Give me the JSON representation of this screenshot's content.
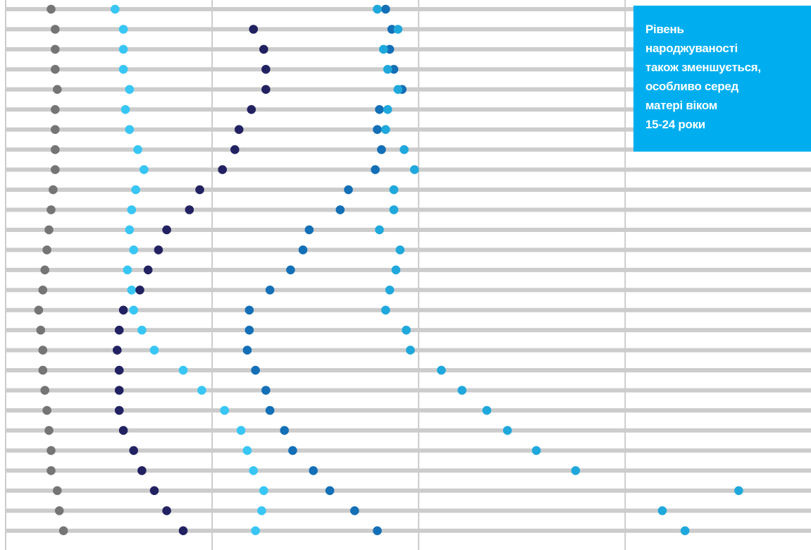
{
  "annotation": {
    "text": "Рівень\nнароджуваності\nтакож зменшується,\nособливо серед\nматері віком\n15-24 роки",
    "bg_color": "#00aeef",
    "text_color": "#ffffff"
  },
  "chart_data": {
    "type": "scatter",
    "style": "dot-plot",
    "title": "",
    "xlabel": "",
    "ylabel": "",
    "grid": true,
    "xlim": [
      0,
      3.9
    ],
    "row_count": 27,
    "colors": {
      "row_band": "#cccccc",
      "gridline": "#cccccc"
    },
    "series": [
      {
        "color": "#757575",
        "values": [
          0.22,
          0.24,
          0.24,
          0.24,
          0.25,
          0.24,
          0.24,
          0.24,
          0.24,
          0.23,
          0.22,
          0.21,
          0.2,
          0.19,
          0.18,
          0.16,
          0.17,
          0.18,
          0.18,
          0.19,
          0.2,
          0.21,
          0.22,
          0.22,
          0.25,
          0.26,
          0.28
        ]
      },
      {
        "color": "#38c6f4",
        "values": [
          0.53,
          0.57,
          0.57,
          0.57,
          0.6,
          0.58,
          0.6,
          0.64,
          0.67,
          0.63,
          0.61,
          0.6,
          0.62,
          0.59,
          0.61,
          0.62,
          0.66,
          0.72,
          0.86,
          0.95,
          1.06,
          1.14,
          1.17,
          1.2,
          1.25,
          1.24,
          1.21
        ]
      },
      {
        "color": "#222262",
        "values": [
          null,
          1.2,
          1.25,
          1.26,
          1.26,
          1.19,
          1.13,
          1.11,
          1.05,
          0.94,
          0.89,
          0.78,
          0.74,
          0.69,
          0.65,
          0.57,
          0.55,
          0.54,
          0.55,
          0.55,
          0.55,
          0.57,
          0.62,
          0.66,
          0.72,
          0.78,
          0.86
        ]
      },
      {
        "color": "#136fb6",
        "values": [
          1.84,
          1.87,
          1.86,
          1.88,
          1.92,
          1.81,
          1.8,
          1.82,
          1.79,
          1.66,
          1.62,
          1.47,
          1.44,
          1.38,
          1.28,
          1.18,
          1.18,
          1.17,
          1.21,
          1.26,
          1.28,
          1.35,
          1.39,
          1.49,
          1.57,
          1.69,
          1.8
        ]
      },
      {
        "color": "#1fa8dc",
        "values": [
          1.8,
          1.9,
          1.83,
          1.85,
          1.9,
          1.85,
          1.84,
          1.93,
          1.98,
          1.88,
          1.88,
          1.81,
          1.91,
          1.89,
          1.86,
          1.84,
          1.94,
          1.96,
          2.11,
          2.21,
          2.33,
          2.43,
          2.57,
          2.76,
          3.55,
          3.18,
          3.29
        ]
      }
    ]
  }
}
